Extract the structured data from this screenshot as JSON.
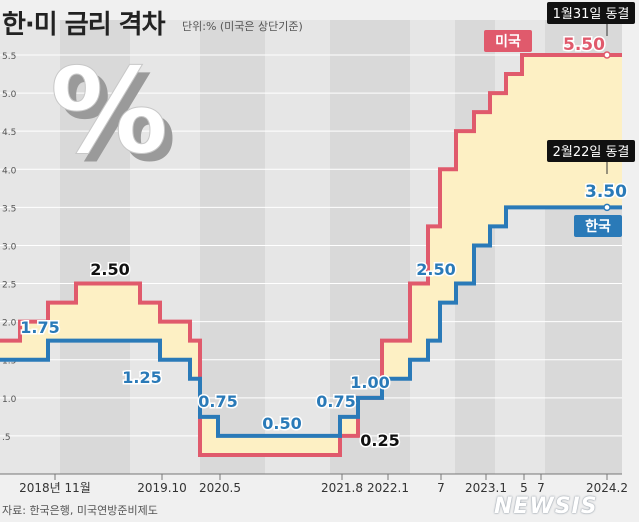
{
  "page": {
    "title": "한·미 금리 격차",
    "unit_note": "단위:% (미국은 상단기준)",
    "source": "자료: 한국은행, 미국연방준비제도",
    "logo": "NEWSIS"
  },
  "chart_data": {
    "type": "line",
    "step": true,
    "ylim": [
      0,
      5.75
    ],
    "y_ticks": [
      0.5,
      1.0,
      1.5,
      2.0,
      2.5,
      3.0,
      3.5,
      4.0,
      4.5,
      5.0,
      5.5
    ],
    "y_tick_labels": [
      ".5",
      "1.0",
      "1.5",
      "2.0",
      "2.5",
      "3.0",
      "3.5",
      "4.0",
      "4.5",
      "5.0",
      "5.5"
    ],
    "x_tick_labels": [
      "2018년 11월",
      "2019.10",
      "2020.5",
      "2021.8",
      "2022.1",
      "7",
      "2023.1",
      "5",
      "7",
      "2024.2"
    ],
    "series": [
      {
        "name": "미국",
        "color": "#e05a6c",
        "values": [
          1.75,
          2.0,
          2.25,
          2.5,
          2.25,
          2.0,
          1.75,
          0.25,
          0.25,
          0.5,
          1.0,
          1.75,
          2.5,
          3.25,
          4.0,
          4.5,
          4.75,
          5.0,
          5.25,
          5.5,
          5.5
        ],
        "end_value_label": "5.50",
        "end_note": "1월31일 동결"
      },
      {
        "name": "한국",
        "color": "#2a7ab8",
        "values": [
          1.5,
          1.5,
          1.75,
          1.75,
          1.75,
          1.5,
          1.25,
          0.75,
          0.5,
          0.75,
          1.0,
          1.25,
          1.5,
          1.75,
          2.25,
          2.5,
          3.0,
          3.25,
          3.5,
          3.5,
          3.5
        ],
        "end_value_label": "3.50",
        "end_note": "2월22일 동결"
      }
    ],
    "data_labels": [
      {
        "series": "미국",
        "text": "2.50"
      },
      {
        "series": "미국",
        "text": "0.25"
      },
      {
        "series": "미국",
        "text": "5.50"
      },
      {
        "series": "한국",
        "text": "1.75"
      },
      {
        "series": "한국",
        "text": "1.25"
      },
      {
        "series": "한국",
        "text": "0.75"
      },
      {
        "series": "한국",
        "text": "0.50"
      },
      {
        "series": "한국",
        "text": "0.75"
      },
      {
        "series": "한국",
        "text": "1.00"
      },
      {
        "series": "한국",
        "text": "2.50"
      },
      {
        "series": "한국",
        "text": "3.50"
      }
    ],
    "colors": {
      "gap_fill": "#fdf0c4",
      "band_light": "#e6e6e6",
      "band_dark": "#d9d9d9",
      "callout_bg": "#111111"
    },
    "decoration": "percent-sign"
  }
}
